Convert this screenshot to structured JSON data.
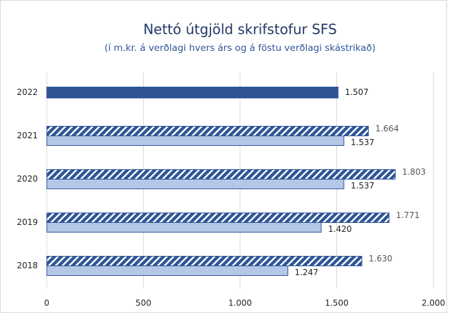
{
  "chart_data": {
    "type": "hbar",
    "title": "Nettó útgjöld skrifstofur SFS",
    "subtitle": "(í m.kr. á verðlagi hvers árs og á föstu verðlagi skástrikað)",
    "categories": [
      "2018",
      "2019",
      "2020",
      "2021",
      "2022"
    ],
    "series": [
      {
        "color": "#2f5597",
        "hatch": true,
        "values": [
          1630,
          1771,
          1803,
          1664,
          null
        ],
        "value_labels": [
          "1.630",
          "1.771",
          "1.803",
          "1.664",
          null
        ]
      },
      {
        "color": "#b4c7e7",
        "values": [
          1247,
          1420,
          1537,
          1537,
          null
        ],
        "value_labels": [
          "1.247",
          "1.420",
          "1.537",
          "1.537",
          null
        ]
      },
      {
        "color": "#2f5597",
        "values": [
          null,
          null,
          null,
          null,
          1507
        ],
        "value_labels": [
          null,
          null,
          null,
          null,
          "1.507"
        ]
      }
    ],
    "xlim": [
      0,
      2000
    ],
    "xticks": [
      0,
      500,
      {
        "value": 1000,
        "label": "1.000"
      },
      {
        "value": 1500,
        "label": "1.500"
      },
      {
        "value": 2000,
        "label": "2.000"
      }
    ],
    "grid": true
  }
}
